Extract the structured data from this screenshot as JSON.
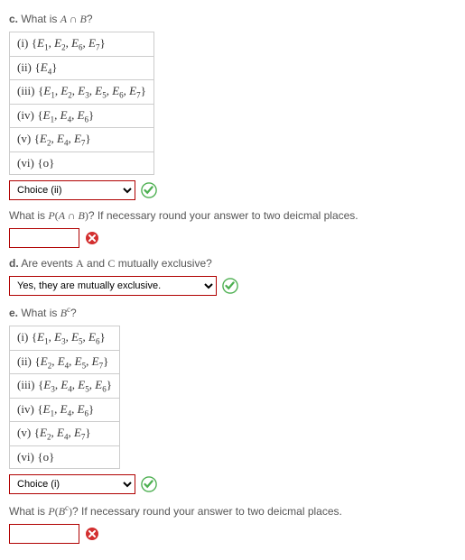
{
  "partC": {
    "label": "c.",
    "question_pre": "What is ",
    "question_math": "A ∩ B",
    "question_post": "?",
    "options": [
      {
        "num": "(i)",
        "items": [
          "E|1",
          "E|2",
          "E|6",
          "E|7"
        ]
      },
      {
        "num": "(ii)",
        "items": [
          "E|4"
        ]
      },
      {
        "num": "(iii)",
        "items": [
          "E|1",
          "E|2",
          "E|3",
          "E|5",
          "E|6",
          "E|7"
        ]
      },
      {
        "num": "(iv)",
        "items": [
          "E|1",
          "E|4",
          "E|6"
        ]
      },
      {
        "num": "(v)",
        "items": [
          "E|2",
          "E|4",
          "E|7"
        ]
      },
      {
        "num": "(vi)",
        "items": [
          "o|"
        ]
      }
    ],
    "select_value": "Choice (ii)",
    "prob_q_pre": "What is ",
    "prob_q_math": "P(A ∩ B)",
    "prob_q_post": "? If necessary round your answer to two deicmal places."
  },
  "partD": {
    "label": "d.",
    "question": "Are events A and C mutually exclusive?",
    "select_value": "Yes, they are mutually exclusive."
  },
  "partE": {
    "label": "e.",
    "question_pre": "What is ",
    "question_math": "B",
    "question_sup": "c",
    "question_post": "?",
    "options": [
      {
        "num": "(i)",
        "items": [
          "E|1",
          "E|3",
          "E|5",
          "E|6"
        ]
      },
      {
        "num": "(ii)",
        "items": [
          "E|2",
          "E|4",
          "E|5",
          "E|7"
        ]
      },
      {
        "num": "(iii)",
        "items": [
          "E|3",
          "E|4",
          "E|5",
          "E|6"
        ]
      },
      {
        "num": "(iv)",
        "items": [
          "E|1",
          "E|4",
          "E|6"
        ]
      },
      {
        "num": "(v)",
        "items": [
          "E|2",
          "E|4",
          "E|7"
        ]
      },
      {
        "num": "(vi)",
        "items": [
          "o|"
        ]
      }
    ],
    "select_value": "Choice (i)",
    "prob_q_pre": "What is ",
    "prob_q_math": "P(B",
    "prob_q_sup": "c",
    "prob_q_math2": ")",
    "prob_q_post": "? If necessary round your answer to two deicmal places."
  },
  "colors": {
    "green": "#4caf50",
    "red": "#d32f2f",
    "border": "#b00000"
  }
}
